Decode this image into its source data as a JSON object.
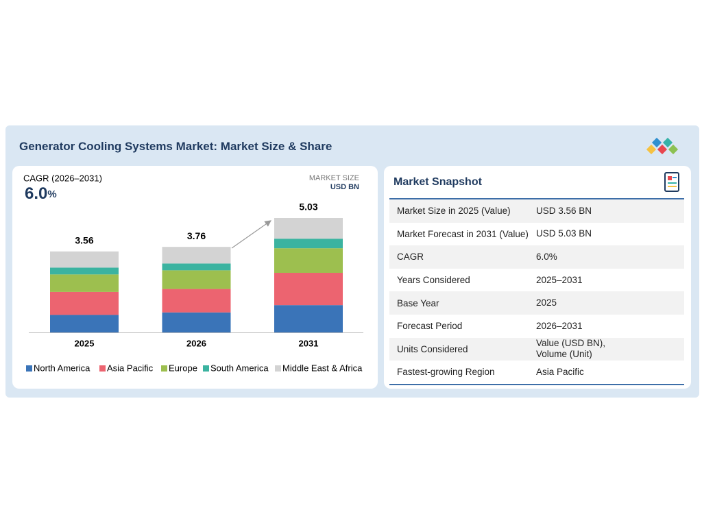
{
  "header": {
    "title": "Generator Cooling Systems Market: Market Size & Share"
  },
  "chart_data": {
    "type": "bar",
    "stacked": true,
    "cagr_label": "CAGR (2026–2031)",
    "cagr": "6.0",
    "cagr_unit": "%",
    "unit_label": "MARKET SIZE",
    "unit": "USD BN",
    "categories": [
      "2025",
      "2026",
      "2031"
    ],
    "totals": [
      3.56,
      3.76,
      5.03
    ],
    "series": [
      {
        "name": "North America",
        "color": "#3a74b8",
        "values": [
          0.77,
          0.88,
          1.2
        ]
      },
      {
        "name": "Asia Pacific",
        "color": "#ec6470",
        "values": [
          1.01,
          1.03,
          1.42
        ]
      },
      {
        "name": "Europe",
        "color": "#9dbf4f",
        "values": [
          0.77,
          0.82,
          1.08
        ]
      },
      {
        "name": "South America",
        "color": "#3bb3a0",
        "values": [
          0.3,
          0.3,
          0.42
        ]
      },
      {
        "name": "Middle East & Africa",
        "color": "#d3d3d3",
        "values": [
          0.71,
          0.73,
          0.91
        ]
      }
    ]
  },
  "snapshot": {
    "title": "Market Snapshot",
    "rows": [
      [
        "Market Size in 2025 (Value)",
        "USD  3.56 BN"
      ],
      [
        "Market Forecast in 2031 (Value)",
        "USD  5.03 BN"
      ],
      [
        "CAGR",
        "6.0%"
      ],
      [
        "Years Considered",
        "2025–2031"
      ],
      [
        "Base Year",
        "2025"
      ],
      [
        "Forecast Period",
        "2026–2031"
      ],
      [
        "Units Considered",
        "Value (USD BN),\nVolume (Unit)"
      ],
      [
        "Fastest-growing Region",
        "Asia Pacific"
      ]
    ]
  }
}
